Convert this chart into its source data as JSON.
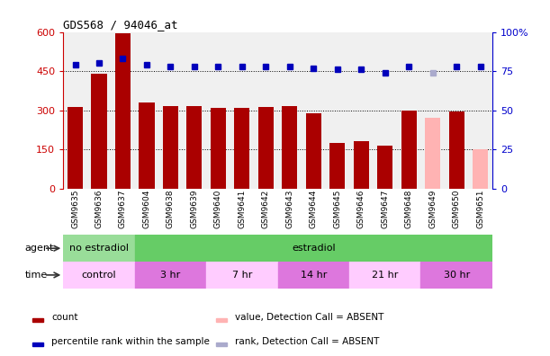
{
  "title": "GDS568 / 94046_at",
  "samples": [
    "GSM9635",
    "GSM9636",
    "GSM9637",
    "GSM9604",
    "GSM9638",
    "GSM9639",
    "GSM9640",
    "GSM9641",
    "GSM9642",
    "GSM9643",
    "GSM9644",
    "GSM9645",
    "GSM9646",
    "GSM9647",
    "GSM9648",
    "GSM9649",
    "GSM9650",
    "GSM9651"
  ],
  "bar_values": [
    312,
    440,
    595,
    330,
    315,
    318,
    310,
    308,
    312,
    318,
    288,
    175,
    182,
    165,
    298,
    270,
    295,
    150
  ],
  "bar_absent": [
    false,
    false,
    false,
    false,
    false,
    false,
    false,
    false,
    false,
    false,
    false,
    false,
    false,
    false,
    false,
    true,
    false,
    true
  ],
  "percentile_values": [
    79,
    80,
    83,
    79,
    78,
    78,
    78,
    78,
    78,
    78,
    77,
    76,
    76,
    74,
    78,
    74,
    78,
    78
  ],
  "percentile_absent": [
    false,
    false,
    false,
    false,
    false,
    false,
    false,
    false,
    false,
    false,
    false,
    false,
    false,
    false,
    false,
    true,
    false,
    false
  ],
  "bar_color_normal": "#aa0000",
  "bar_color_absent": "#ffb3b3",
  "dot_color_normal": "#0000bb",
  "dot_color_absent": "#aaaacc",
  "ylim_left": [
    0,
    600
  ],
  "ylim_right": [
    0,
    100
  ],
  "yticks_left": [
    0,
    150,
    300,
    450,
    600
  ],
  "ytick_labels_left": [
    "0",
    "150",
    "300",
    "450",
    "600"
  ],
  "yticks_right": [
    0,
    25,
    50,
    75,
    100
  ],
  "ytick_labels_right": [
    "0",
    "25",
    "50",
    "75",
    "100%"
  ],
  "agent_groups": [
    {
      "label": "no estradiol",
      "start": 0,
      "end": 3,
      "color": "#99dd99"
    },
    {
      "label": "estradiol",
      "start": 3,
      "end": 18,
      "color": "#66cc66"
    }
  ],
  "time_groups": [
    {
      "label": "control",
      "start": 0,
      "end": 3,
      "color": "#ffccff"
    },
    {
      "label": "3 hr",
      "start": 3,
      "end": 6,
      "color": "#dd77dd"
    },
    {
      "label": "7 hr",
      "start": 6,
      "end": 9,
      "color": "#ffccff"
    },
    {
      "label": "14 hr",
      "start": 9,
      "end": 12,
      "color": "#dd77dd"
    },
    {
      "label": "21 hr",
      "start": 12,
      "end": 15,
      "color": "#ffccff"
    },
    {
      "label": "30 hr",
      "start": 15,
      "end": 18,
      "color": "#dd77dd"
    }
  ],
  "legend_items": [
    {
      "label": "count",
      "color": "#aa0000"
    },
    {
      "label": "percentile rank within the sample",
      "color": "#0000bb"
    },
    {
      "label": "value, Detection Call = ABSENT",
      "color": "#ffb3b3"
    },
    {
      "label": "rank, Detection Call = ABSENT",
      "color": "#aaaacc"
    }
  ],
  "background_color": "#ffffff",
  "plot_bg_color": "#f0f0f0",
  "grid_color": "#000000",
  "xtick_bg_color": "#cccccc"
}
